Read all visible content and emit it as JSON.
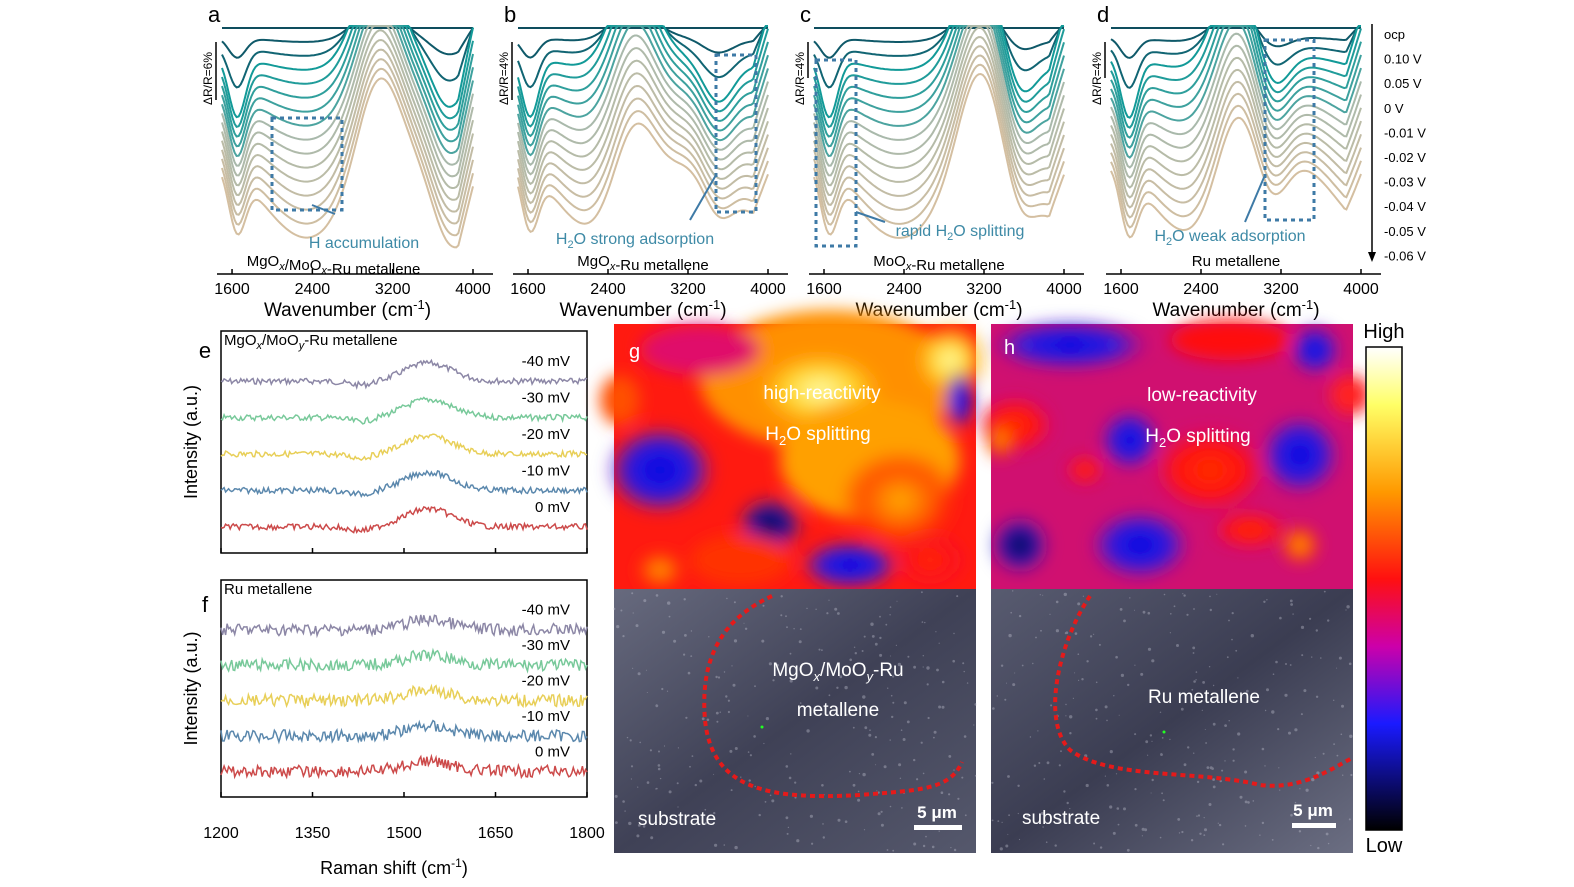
{
  "chart_data": {
    "type": "multi-panel",
    "ir_panels": [
      {
        "letter": "a",
        "sample": "MgOx/MoOx-Ru metallene",
        "annotation": "H accumulation",
        "scale": "ΔR/R=6%",
        "xlabel": "Wavenumber (cm-1)",
        "xticks": [
          1600,
          2400,
          3200,
          4000
        ],
        "xlim": [
          1500,
          4000
        ]
      },
      {
        "letter": "b",
        "sample": "MgOx-Ru metallene",
        "annotation": "H2O strong adsorption",
        "scale": "ΔR/R=4%",
        "xlabel": "Wavenumber (cm-1)",
        "xticks": [
          1600,
          2400,
          3200,
          4000
        ],
        "xlim": [
          1500,
          4000
        ]
      },
      {
        "letter": "c",
        "sample": "MoOx-Ru metallene",
        "annotation": "rapid H2O splitting",
        "scale": "ΔR/R=4%",
        "xlabel": "Wavenumber (cm-1)",
        "xticks": [
          1600,
          2400,
          3200,
          4000
        ],
        "xlim": [
          1500,
          4000
        ]
      },
      {
        "letter": "d",
        "sample": "Ru metallene",
        "annotation": "H2O weak adsorption",
        "scale": "ΔR/R=4%",
        "xlabel": "Wavenumber (cm-1)",
        "xticks": [
          1600,
          2400,
          3200,
          4000
        ],
        "xlim": [
          1500,
          4000
        ]
      }
    ],
    "potential_legend": [
      "ocp",
      "0.10 V",
      "0.05 V",
      "0 V",
      "-0.01 V",
      "-0.02 V",
      "-0.03 V",
      "-0.04 V",
      "-0.05 V",
      "-0.06 V"
    ],
    "raman_panels": [
      {
        "letter": "e",
        "sample": "MgOx/MoOy-Ru metallene",
        "ylabel": "Intensity (a.u.)",
        "series": [
          "-40 mV",
          "-30 mV",
          "-20 mV",
          "-10 mV",
          "0 mV"
        ]
      },
      {
        "letter": "f",
        "sample": "Ru metallene",
        "ylabel": "Intensity (a.u.)",
        "series": [
          "-40 mV",
          "-30 mV",
          "-20 mV",
          "-10 mV",
          "0 mV"
        ]
      }
    ],
    "raman_xlabel": "Raman shift (cm-1)",
    "raman_xticks": [
      1200,
      1350,
      1500,
      1650,
      1800
    ],
    "raman_xlim": [
      1200,
      1800
    ],
    "raman_peak": 1540,
    "series_colors": [
      "#8c87a6",
      "#78c99a",
      "#e8cf58",
      "#5b88ad",
      "#cc4a4a"
    ],
    "map_panels": [
      {
        "letter": "g",
        "line1": "high-reactivity",
        "line2": "H2O splitting",
        "photo_label": "MgOx/MoOy-Ru",
        "photo_label2": "metallene",
        "substrate": "substrate",
        "scalebar": "5 μm"
      },
      {
        "letter": "h",
        "line1": "low-reactivity",
        "line2": "H2O splitting",
        "photo_label": "Ru metallene",
        "photo_label2": "",
        "substrate": "substrate",
        "scalebar": "5 μm"
      }
    ],
    "colorbar": {
      "high": "High",
      "low": "Low"
    }
  }
}
